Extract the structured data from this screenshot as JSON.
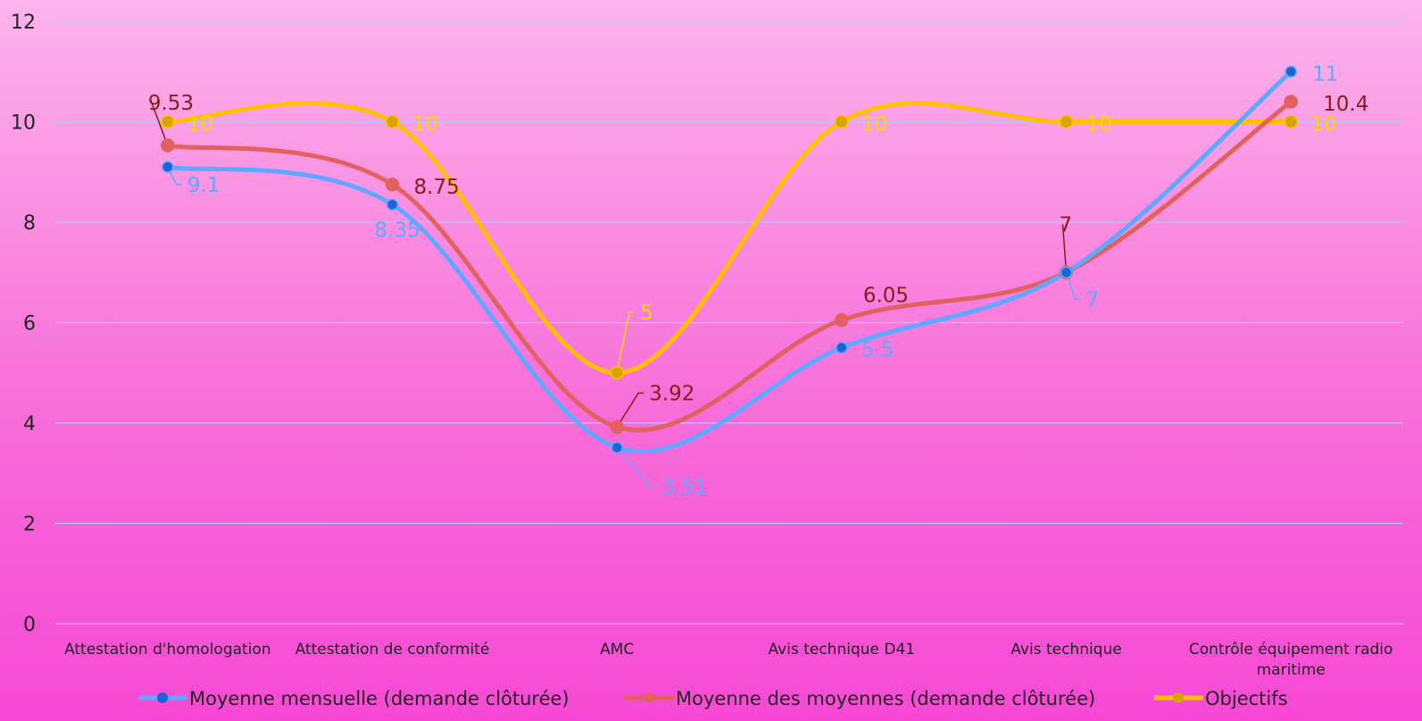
{
  "chart_data": {
    "type": "line",
    "categories": [
      [
        "Attestation d'homologation"
      ],
      [
        "Attestation de conformité"
      ],
      [
        "AMC"
      ],
      [
        "Avis technique D41"
      ],
      [
        "Avis technique"
      ],
      [
        "Contrôle équipement radio",
        "maritime"
      ]
    ],
    "yticks": [
      "0",
      "2",
      "4",
      "6",
      "8",
      "10",
      "12"
    ],
    "ylim": [
      0,
      12
    ],
    "grid": true,
    "legend_position": "bottom",
    "series": [
      {
        "name": "Moyenne mensuelle (demande clôturée)",
        "values": [
          9.1,
          8.35,
          3.51,
          5.5,
          7,
          11
        ],
        "labels": [
          "9.1",
          "8.35",
          "3.51",
          "5.5",
          "7",
          "11"
        ],
        "color": "#5fa8ff",
        "marker_color": "#1b64d8",
        "label_color": "#5fa8ff"
      },
      {
        "name": "Moyenne des moyennes (demande clôturée)",
        "values": [
          9.53,
          8.75,
          3.92,
          6.05,
          7,
          10.4
        ],
        "labels": [
          "9.53",
          "8.75",
          "3.92",
          "6.05",
          "7",
          "10.4"
        ],
        "color": "#e2605e",
        "marker_color": "#e2605e",
        "label_color": "#8b1a1a"
      },
      {
        "name": "Objectifs",
        "values": [
          10,
          10,
          5,
          10,
          10,
          10
        ],
        "labels": [
          "10",
          "10",
          "5",
          "10",
          "10",
          "10"
        ],
        "color": "#ffc000",
        "marker_color": "#d9a400",
        "label_color": "#ffd700"
      }
    ]
  }
}
